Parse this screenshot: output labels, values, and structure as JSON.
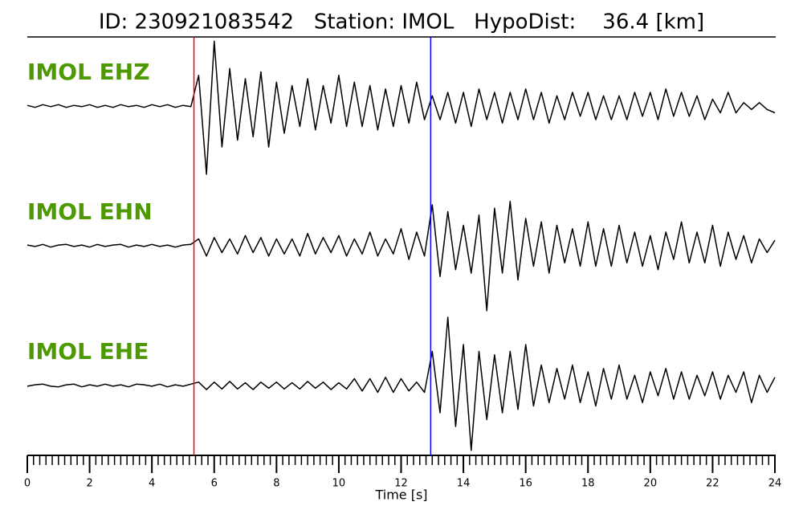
{
  "chart_data": {
    "type": "line",
    "title": "ID: 230921083542   Station: IMOL   HypoDist:    36.4 [km]",
    "xlabel": "Time [s]",
    "label_color": "#4c9900",
    "xlim": [
      0,
      24
    ],
    "ylim": [
      -1,
      1
    ],
    "xticks": [
      0,
      2,
      4,
      6,
      8,
      10,
      12,
      14,
      16,
      18,
      20,
      22,
      24
    ],
    "xminorticks": [
      0,
      0.2,
      0.4,
      0.6,
      0.8,
      1,
      1.2,
      1.4,
      1.6,
      1.8,
      2,
      2.2,
      2.4,
      2.6,
      2.8,
      3,
      3.2,
      3.4,
      3.6,
      3.8,
      4,
      4.2,
      4.4,
      4.6,
      4.8,
      5,
      5.2,
      5.4,
      5.6,
      5.8,
      6,
      6.2,
      6.4,
      6.6,
      6.8,
      7,
      7.2,
      7.4,
      7.6,
      7.8,
      8,
      8.2,
      8.4,
      8.6,
      8.8,
      9,
      9.2,
      9.4,
      9.6,
      9.8,
      10,
      10.2,
      10.4,
      10.6,
      10.8,
      11,
      11.2,
      11.4,
      11.6,
      11.8,
      12,
      12.2,
      12.4,
      12.6,
      12.8,
      13,
      13.2,
      13.4,
      13.6,
      13.8,
      14,
      14.2,
      14.4,
      14.6,
      14.8,
      15,
      15.2,
      15.4,
      15.6,
      15.8,
      16,
      16.2,
      16.4,
      16.6,
      16.8,
      17,
      17.2,
      17.4,
      17.6,
      17.8,
      18,
      18.2,
      18.4,
      18.6,
      18.8,
      19,
      19.2,
      19.4,
      19.6,
      19.8,
      20,
      20.2,
      20.4,
      20.6,
      20.8,
      21,
      21.2,
      21.4,
      21.6,
      21.8,
      22,
      22.2,
      22.4,
      22.6,
      22.8,
      23,
      23.2,
      23.4,
      23.6,
      23.8,
      24
    ],
    "picks": [
      {
        "time": 5.35,
        "color": "#ff0000"
      },
      {
        "time": 12.95,
        "color": "#0000ff"
      }
    ],
    "x": [
      0,
      0.25,
      0.5,
      0.75,
      1,
      1.25,
      1.5,
      1.75,
      2,
      2.25,
      2.5,
      2.75,
      3,
      3.25,
      3.5,
      3.75,
      4,
      4.25,
      4.5,
      4.75,
      5,
      5.25,
      5.5,
      5.75,
      6,
      6.25,
      6.5,
      6.75,
      7,
      7.25,
      7.5,
      7.75,
      8,
      8.25,
      8.5,
      8.75,
      9,
      9.25,
      9.5,
      9.75,
      10,
      10.25,
      10.5,
      10.75,
      11,
      11.25,
      11.5,
      11.75,
      12,
      12.25,
      12.5,
      12.75,
      13,
      13.25,
      13.5,
      13.75,
      14,
      14.25,
      14.5,
      14.75,
      15,
      15.25,
      15.5,
      15.75,
      16,
      16.25,
      16.5,
      16.75,
      17,
      17.25,
      17.5,
      17.75,
      18,
      18.25,
      18.5,
      18.75,
      19,
      19.25,
      19.5,
      19.75,
      20,
      20.25,
      20.5,
      20.75,
      21,
      21.25,
      21.5,
      21.75,
      22,
      22.25,
      22.5,
      22.75,
      23,
      23.25,
      23.5,
      23.75,
      24
    ],
    "series": [
      {
        "name": "IMOL EHZ",
        "color": "#000000",
        "values": [
          0.01,
          -0.02,
          0.02,
          -0.01,
          0.02,
          -0.02,
          0.01,
          -0.01,
          0.02,
          -0.02,
          0.01,
          -0.02,
          0.02,
          -0.01,
          0.01,
          -0.02,
          0.02,
          -0.01,
          0.02,
          -0.02,
          0.01,
          -0.01,
          0.45,
          -1.0,
          0.95,
          -0.6,
          0.55,
          -0.5,
          0.4,
          -0.45,
          0.5,
          -0.6,
          0.35,
          -0.4,
          0.3,
          -0.3,
          0.4,
          -0.35,
          0.3,
          -0.25,
          0.45,
          -0.3,
          0.35,
          -0.3,
          0.3,
          -0.35,
          0.25,
          -0.3,
          0.3,
          -0.25,
          0.35,
          -0.2,
          0.15,
          -0.2,
          0.2,
          -0.25,
          0.2,
          -0.3,
          0.25,
          -0.2,
          0.2,
          -0.25,
          0.2,
          -0.2,
          0.25,
          -0.2,
          0.2,
          -0.25,
          0.15,
          -0.2,
          0.2,
          -0.15,
          0.2,
          -0.2,
          0.15,
          -0.2,
          0.15,
          -0.2,
          0.2,
          -0.15,
          0.2,
          -0.2,
          0.25,
          -0.15,
          0.2,
          -0.15,
          0.15,
          -0.2,
          0.1,
          -0.1,
          0.2,
          -0.1,
          0.05,
          -0.05,
          0.05,
          -0.05,
          -0.1
        ]
      },
      {
        "name": "IMOL EHN",
        "color": "#000000",
        "values": [
          0.01,
          -0.01,
          0.02,
          -0.02,
          0.01,
          0.02,
          -0.01,
          0.01,
          -0.02,
          0.02,
          -0.01,
          0.01,
          0.02,
          -0.02,
          0.01,
          -0.01,
          0.02,
          -0.01,
          0.01,
          -0.02,
          0.01,
          0.02,
          0.1,
          -0.15,
          0.12,
          -0.1,
          0.1,
          -0.12,
          0.15,
          -0.1,
          0.12,
          -0.15,
          0.1,
          -0.12,
          0.1,
          -0.15,
          0.18,
          -0.12,
          0.12,
          -0.1,
          0.15,
          -0.15,
          0.1,
          -0.12,
          0.2,
          -0.15,
          0.1,
          -0.12,
          0.25,
          -0.2,
          0.2,
          -0.15,
          0.6,
          -0.45,
          0.5,
          -0.35,
          0.3,
          -0.4,
          0.45,
          -0.95,
          0.55,
          -0.4,
          0.65,
          -0.5,
          0.4,
          -0.3,
          0.35,
          -0.4,
          0.3,
          -0.25,
          0.25,
          -0.3,
          0.35,
          -0.3,
          0.25,
          -0.3,
          0.3,
          -0.25,
          0.2,
          -0.3,
          0.15,
          -0.35,
          0.2,
          -0.2,
          0.35,
          -0.25,
          0.2,
          -0.25,
          0.3,
          -0.3,
          0.2,
          -0.2,
          0.15,
          -0.25,
          0.1,
          -0.1,
          0.08
        ]
      },
      {
        "name": "IMOL EHE",
        "color": "#000000",
        "values": [
          -0.01,
          0.01,
          0.02,
          -0.01,
          -0.02,
          0.01,
          0.02,
          -0.02,
          0.01,
          -0.01,
          0.02,
          -0.01,
          0.01,
          -0.02,
          0.02,
          0.01,
          -0.01,
          0.02,
          -0.02,
          0.01,
          -0.01,
          0.02,
          0.05,
          -0.06,
          0.05,
          -0.05,
          0.06,
          -0.05,
          0.04,
          -0.06,
          0.05,
          -0.04,
          0.05,
          -0.05,
          0.04,
          -0.05,
          0.06,
          -0.04,
          0.05,
          -0.06,
          0.04,
          -0.05,
          0.1,
          -0.08,
          0.1,
          -0.1,
          0.12,
          -0.1,
          0.1,
          -0.08,
          0.05,
          -0.1,
          0.5,
          -0.4,
          1.0,
          -0.6,
          0.6,
          -0.95,
          0.5,
          -0.5,
          0.45,
          -0.4,
          0.5,
          -0.35,
          0.6,
          -0.3,
          0.3,
          -0.25,
          0.25,
          -0.2,
          0.3,
          -0.25,
          0.2,
          -0.3,
          0.25,
          -0.2,
          0.3,
          -0.2,
          0.15,
          -0.25,
          0.2,
          -0.15,
          0.25,
          -0.2,
          0.2,
          -0.2,
          0.15,
          -0.15,
          0.2,
          -0.2,
          0.15,
          -0.1,
          0.2,
          -0.25,
          0.15,
          -0.1,
          0.12
        ]
      }
    ]
  }
}
